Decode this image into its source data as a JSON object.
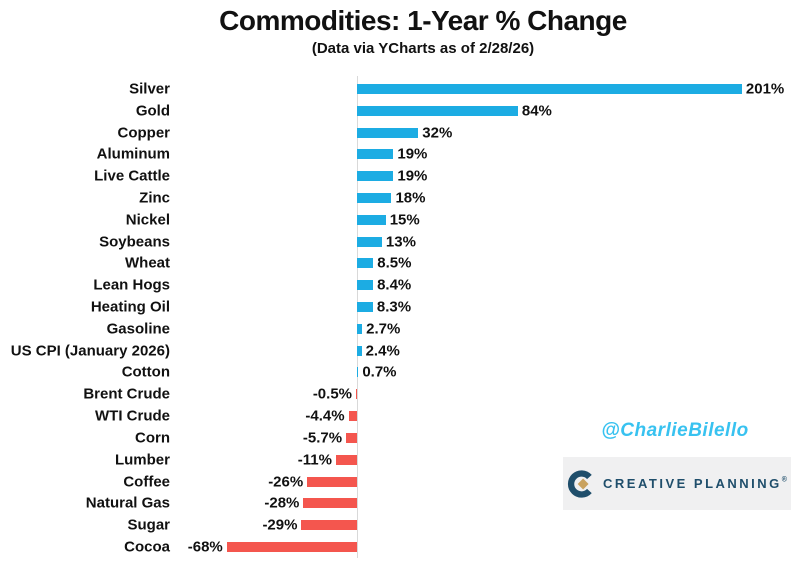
{
  "header": {
    "title": "Commodities: 1-Year % Change",
    "subtitle": "(Data via YCharts as of 2/28/26)"
  },
  "chart_data": {
    "type": "bar",
    "orientation": "horizontal",
    "title": "Commodities: 1-Year % Change",
    "subtitle": "(Data via YCharts as of 2/28/26)",
    "xlabel": "",
    "ylabel": "",
    "xlim": [
      -80,
      230
    ],
    "grid": false,
    "legend": false,
    "categories": [
      "Silver",
      "Gold",
      "Copper",
      "Aluminum",
      "Live Cattle",
      "Zinc",
      "Nickel",
      "Soybeans",
      "Wheat",
      "Lean Hogs",
      "Heating Oil",
      "Gasoline",
      "US CPI (January 2026)",
      "Cotton",
      "Brent Crude",
      "WTI Crude",
      "Corn",
      "Lumber",
      "Coffee",
      "Natural Gas",
      "Sugar",
      "Cocoa"
    ],
    "values": [
      201,
      84,
      32,
      19,
      19,
      18,
      15,
      13,
      8.5,
      8.4,
      8.3,
      2.7,
      2.4,
      0.7,
      -0.5,
      -4.4,
      -5.7,
      -11,
      -26,
      -28,
      -29,
      -68
    ],
    "value_labels": [
      "201%",
      "84%",
      "32%",
      "19%",
      "19%",
      "18%",
      "15%",
      "13%",
      "8.5%",
      "8.4%",
      "8.3%",
      "2.7%",
      "2.4%",
      "0.7%",
      "-0.5%",
      "-4.4%",
      "-5.7%",
      "-11%",
      "-26%",
      "-28%",
      "-29%",
      "-68%"
    ],
    "positive_color": "#1cace3",
    "negative_color": "#f4564e"
  },
  "branding": {
    "handle": "@CharlieBilello",
    "handle_color": "#38c2f0",
    "logo_text": "CREATIVE PLANNING",
    "logo_mark": "®",
    "logo_color": "#1f4e6b",
    "logo_gold": "#c9a25f",
    "logo_panel_color": "#f0f0f1"
  }
}
